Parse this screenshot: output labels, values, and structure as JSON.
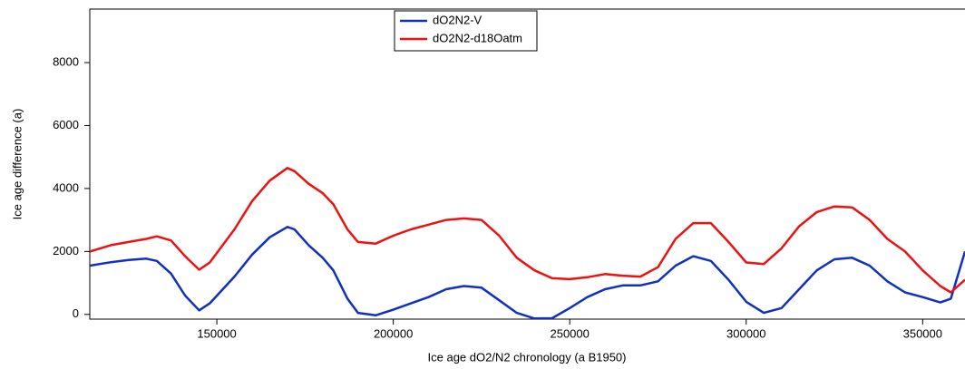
{
  "chart_data": {
    "type": "line",
    "xlabel": "Ice age dO2/N2 chronology (a B1950)",
    "ylabel": "Ice age difference (a)",
    "x": [
      114000,
      120000,
      125000,
      130000,
      133000,
      137000,
      141000,
      145000,
      148000,
      155000,
      160000,
      165000,
      170000,
      172000,
      176000,
      180000,
      183000,
      187000,
      190000,
      195000,
      200000,
      205000,
      210000,
      215000,
      220000,
      225000,
      230000,
      235000,
      240000,
      245000,
      250000,
      255000,
      260000,
      265000,
      270000,
      275000,
      280000,
      285000,
      290000,
      295000,
      300000,
      305000,
      310000,
      315000,
      320000,
      325000,
      330000,
      335000,
      340000,
      345000,
      350000,
      355000,
      358000,
      362000
    ],
    "series": [
      {
        "name": "dO2N2-V",
        "color": "#1030c0",
        "values": [
          1550,
          1660,
          1730,
          1770,
          1700,
          1300,
          600,
          130,
          350,
          1200,
          1900,
          2450,
          2780,
          2700,
          2200,
          1800,
          1400,
          500,
          50,
          -30,
          150,
          350,
          550,
          800,
          900,
          850,
          450,
          50,
          -130,
          -120,
          200,
          550,
          800,
          920,
          920,
          1050,
          1550,
          1850,
          1700,
          1100,
          400,
          50,
          200,
          800,
          1400,
          1750,
          1800,
          1550,
          1050,
          700,
          550,
          380,
          500,
          2000
        ]
      },
      {
        "name": "dO2N2-d18Oatm",
        "color": "#ee1111",
        "values": [
          2000,
          2200,
          2300,
          2400,
          2480,
          2350,
          1850,
          1420,
          1650,
          2700,
          3600,
          4250,
          4650,
          4550,
          4150,
          3850,
          3500,
          2700,
          2300,
          2250,
          2500,
          2700,
          2850,
          3000,
          3050,
          3000,
          2500,
          1800,
          1400,
          1150,
          1120,
          1180,
          1280,
          1230,
          1200,
          1500,
          2400,
          2900,
          2900,
          2300,
          1650,
          1600,
          2100,
          2800,
          3250,
          3430,
          3400,
          3000,
          2400,
          2000,
          1400,
          900,
          700,
          1100
        ]
      }
    ],
    "xlim": [
      114000,
      362000
    ],
    "ylim": [
      -150,
      9700
    ],
    "xticks": [
      150000,
      200000,
      250000,
      300000,
      350000
    ],
    "yticks": [
      0,
      2000,
      4000,
      6000,
      8000
    ],
    "grid": false
  }
}
